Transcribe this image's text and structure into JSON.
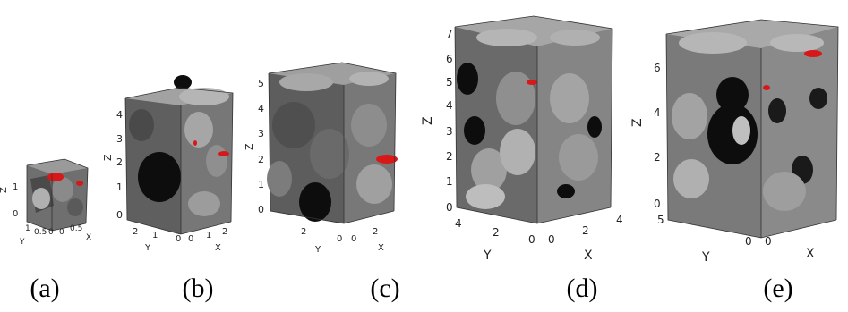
{
  "figure": {
    "panels": [
      {
        "id": "a",
        "caption": "(a)",
        "axis_labels": {
          "x": "X",
          "y": "Y",
          "z": "Z"
        },
        "z_ticks": [
          "0",
          "1"
        ],
        "y_ticks": [
          "1",
          "0.5",
          "0"
        ],
        "x_ticks": [
          "0",
          "0.5"
        ]
      },
      {
        "id": "b",
        "caption": "(b)",
        "axis_labels": {
          "x": "X",
          "y": "Y",
          "z": "Z"
        },
        "z_ticks": [
          "0",
          "1",
          "2",
          "3",
          "4"
        ],
        "y_ticks": [
          "2",
          "1",
          "0"
        ],
        "x_ticks": [
          "0",
          "1",
          "2"
        ]
      },
      {
        "id": "c",
        "caption": "(c)",
        "axis_labels": {
          "x": "X",
          "y": "Y",
          "z": "Z"
        },
        "z_ticks": [
          "0",
          "1",
          "2",
          "3",
          "4",
          "5"
        ],
        "y_ticks": [
          "2",
          "0"
        ],
        "x_ticks": [
          "0",
          "2"
        ]
      },
      {
        "id": "d",
        "caption": "(d)",
        "axis_labels": {
          "x": "X",
          "y": "Y",
          "z": "Z"
        },
        "z_ticks": [
          "0",
          "1",
          "2",
          "3",
          "4",
          "5",
          "6",
          "7"
        ],
        "y_ticks": [
          "4",
          "2",
          "0"
        ],
        "x_ticks": [
          "0",
          "2",
          "4"
        ]
      },
      {
        "id": "e",
        "caption": "(e)",
        "axis_labels": {
          "x": "X",
          "y": "Y",
          "z": "Z"
        },
        "z_ticks": [
          "0",
          "2",
          "4",
          "6"
        ],
        "y_ticks": [
          "5",
          "0"
        ],
        "x_ticks": [
          "0"
        ]
      }
    ],
    "colors": {
      "grain_light": "#9a9a9a",
      "grain_mid": "#6f6f6f",
      "grain_dark": "#4a4a4a",
      "pore_black": "#0d0d0d",
      "red_phase": "#d81818",
      "frame": "#333333"
    }
  }
}
